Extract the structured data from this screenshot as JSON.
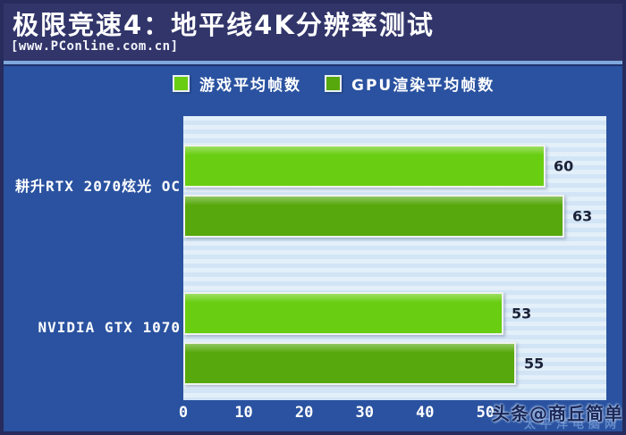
{
  "header": {
    "title": "极限竞速4：地平线4K分辨率测试",
    "source": "[www.PConline.com.cn]"
  },
  "colors": {
    "frame_border": "#272B5D",
    "header_bg": "#31356A",
    "divider": "#7FA7DC",
    "main_bg": "#2A52A0",
    "plot_bg": "#D7E8F7",
    "series_game_green": "#69CE11",
    "series_gpu_green": "#57A80C",
    "value_text": "#1B2238",
    "watermark_text": "#1C2857"
  },
  "legend": {
    "items": [
      {
        "label": "游戏平均帧数",
        "color": "#69CE11"
      },
      {
        "label": "GPU渲染平均帧数",
        "color": "#57A80C"
      }
    ]
  },
  "chart_data": {
    "type": "bar",
    "orientation": "horizontal",
    "title": "极限竞速4：地平线4K分辨率测试",
    "categories": [
      "耕升RTX 2070炫光 OC",
      "NVIDIA GTX 1070"
    ],
    "series": [
      {
        "name": "游戏平均帧数",
        "color": "#69CE11",
        "values": [
          60,
          53
        ]
      },
      {
        "name": "GPU渲染平均帧数",
        "color": "#57A80C",
        "values": [
          63,
          55
        ]
      }
    ],
    "xlim": [
      0,
      70
    ],
    "x_ticks": [
      0,
      10,
      20,
      30,
      40,
      50
    ],
    "grid": false,
    "legend_position": "top",
    "value_labels": true,
    "xlabel": "",
    "ylabel": ""
  },
  "watermark": {
    "text": "头条@商丘简单",
    "faint_text": "太平洋电脑网"
  }
}
